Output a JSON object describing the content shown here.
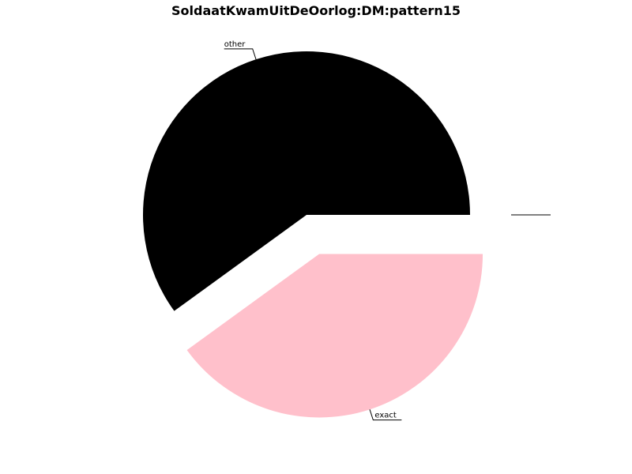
{
  "chart_data": {
    "type": "pie",
    "title": "SoldaatKwamUitDeOorlog:DM:pattern15",
    "slices": [
      {
        "label": "other",
        "value": 60.0,
        "color": "#000000",
        "explode": false
      },
      {
        "label": "exact",
        "value": 40.0,
        "color": "#ffc0cb",
        "explode": true
      },
      {
        "label": "",
        "value": 0.0,
        "color": "#000000",
        "explode": true
      }
    ],
    "start_angle_deg": 0,
    "direction": "counterclockwise",
    "legend": "none"
  }
}
